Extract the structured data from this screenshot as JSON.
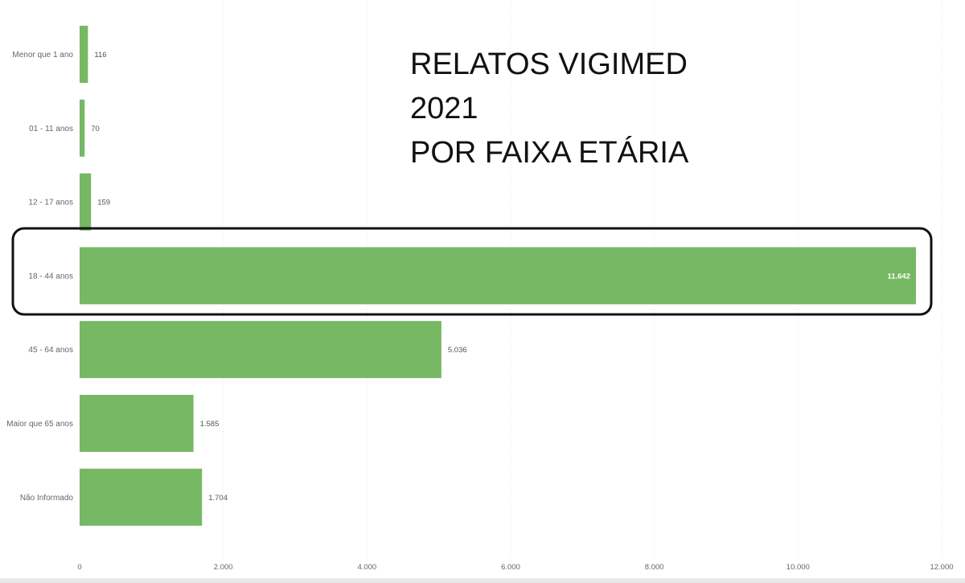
{
  "chart_data": {
    "type": "bar",
    "orientation": "horizontal",
    "title_lines": [
      "RELATOS VIGIMED",
      "2021",
      "POR FAIXA ETÁRIA"
    ],
    "categories": [
      "Menor que 1 ano",
      "01 - 11 anos",
      "12 - 17 anos",
      "18 - 44 anos",
      "45 - 64 anos",
      "Maior que 65 anos",
      "Não Informado"
    ],
    "values": [
      116,
      70,
      159,
      11642,
      5036,
      1585,
      1704
    ],
    "value_labels": [
      "116",
      "70",
      "159",
      "11.642",
      "5.036",
      "1.585",
      "1.704"
    ],
    "xlim": [
      0,
      12000
    ],
    "x_ticks": [
      0,
      2000,
      4000,
      6000,
      8000,
      10000,
      12000
    ],
    "x_tick_labels": [
      "0",
      "2.000",
      "4.000",
      "6.000",
      "8.000",
      "10.000",
      "12.000"
    ],
    "bar_color": "#76b864",
    "grid": true,
    "highlighted_category": "18 - 44 anos"
  }
}
